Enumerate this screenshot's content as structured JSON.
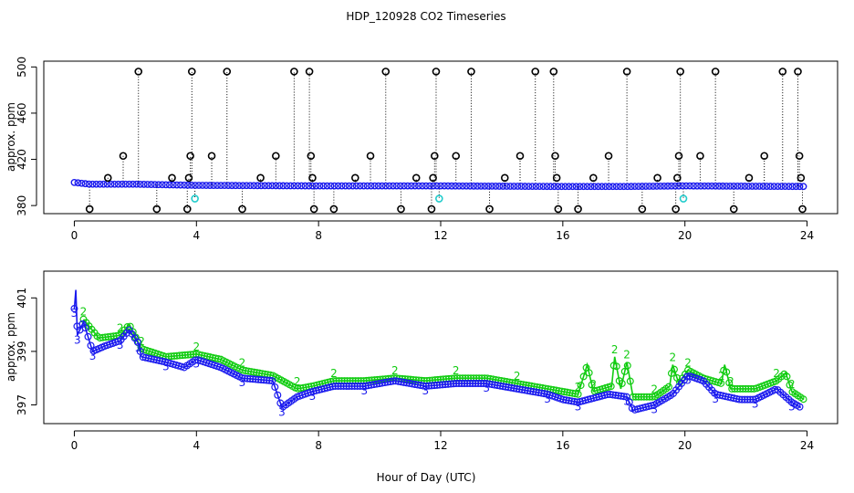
{
  "title": "HDP_120928  CO2 Timeseries",
  "xlabel": "Hour of Day (UTC)",
  "colors": {
    "outlier": "#000000",
    "series_a": "#1a1aee",
    "series_b": "#11cc11",
    "flag_cyan": "#22cccc"
  },
  "chart_data": [
    {
      "type": "scatter",
      "name": "top-panel",
      "ylabel": "approx. ppm",
      "xlim": [
        -1,
        25
      ],
      "ylim": [
        373,
        505
      ],
      "xticks": [
        0,
        4,
        8,
        12,
        16,
        20,
        24
      ],
      "yticks": [
        380,
        420,
        460,
        500
      ],
      "outlier_points": [
        {
          "x": 0.5,
          "y": 377
        },
        {
          "x": 1.1,
          "y": 404
        },
        {
          "x": 1.6,
          "y": 423
        },
        {
          "x": 2.1,
          "y": 496
        },
        {
          "x": 2.7,
          "y": 377
        },
        {
          "x": 3.2,
          "y": 404
        },
        {
          "x": 3.7,
          "y": 377
        },
        {
          "x": 3.75,
          "y": 404
        },
        {
          "x": 3.8,
          "y": 423
        },
        {
          "x": 3.85,
          "y": 496
        },
        {
          "x": 4.5,
          "y": 423
        },
        {
          "x": 5.0,
          "y": 496
        },
        {
          "x": 5.5,
          "y": 377
        },
        {
          "x": 6.1,
          "y": 404
        },
        {
          "x": 6.6,
          "y": 423
        },
        {
          "x": 7.2,
          "y": 496
        },
        {
          "x": 7.7,
          "y": 496
        },
        {
          "x": 7.75,
          "y": 423
        },
        {
          "x": 7.8,
          "y": 404
        },
        {
          "x": 7.85,
          "y": 377
        },
        {
          "x": 8.5,
          "y": 377
        },
        {
          "x": 9.2,
          "y": 404
        },
        {
          "x": 9.7,
          "y": 423
        },
        {
          "x": 10.2,
          "y": 496
        },
        {
          "x": 10.7,
          "y": 377
        },
        {
          "x": 11.2,
          "y": 404
        },
        {
          "x": 11.7,
          "y": 377
        },
        {
          "x": 11.75,
          "y": 404
        },
        {
          "x": 11.8,
          "y": 423
        },
        {
          "x": 11.85,
          "y": 496
        },
        {
          "x": 12.5,
          "y": 423
        },
        {
          "x": 13.0,
          "y": 496
        },
        {
          "x": 13.6,
          "y": 377
        },
        {
          "x": 14.1,
          "y": 404
        },
        {
          "x": 14.6,
          "y": 423
        },
        {
          "x": 15.1,
          "y": 496
        },
        {
          "x": 15.7,
          "y": 496
        },
        {
          "x": 15.75,
          "y": 423
        },
        {
          "x": 15.8,
          "y": 404
        },
        {
          "x": 15.85,
          "y": 377
        },
        {
          "x": 16.5,
          "y": 377
        },
        {
          "x": 17.0,
          "y": 404
        },
        {
          "x": 17.5,
          "y": 423
        },
        {
          "x": 18.1,
          "y": 496
        },
        {
          "x": 18.6,
          "y": 377
        },
        {
          "x": 19.1,
          "y": 404
        },
        {
          "x": 19.7,
          "y": 377
        },
        {
          "x": 19.75,
          "y": 404
        },
        {
          "x": 19.8,
          "y": 423
        },
        {
          "x": 19.85,
          "y": 496
        },
        {
          "x": 20.5,
          "y": 423
        },
        {
          "x": 21.0,
          "y": 496
        },
        {
          "x": 21.6,
          "y": 377
        },
        {
          "x": 22.1,
          "y": 404
        },
        {
          "x": 22.6,
          "y": 423
        },
        {
          "x": 23.2,
          "y": 496
        },
        {
          "x": 23.7,
          "y": 496
        },
        {
          "x": 23.75,
          "y": 423
        },
        {
          "x": 23.8,
          "y": 404
        },
        {
          "x": 23.85,
          "y": 377
        }
      ],
      "flag_points": [
        {
          "x": 3.95,
          "y": 386
        },
        {
          "x": 11.95,
          "y": 386
        },
        {
          "x": 19.95,
          "y": 386
        }
      ],
      "baseline_profile": [
        {
          "x": 0,
          "y": 400
        },
        {
          "x": 0.5,
          "y": 398.5
        },
        {
          "x": 2,
          "y": 398.5
        },
        {
          "x": 4,
          "y": 397.5
        },
        {
          "x": 8,
          "y": 397
        },
        {
          "x": 12,
          "y": 397
        },
        {
          "x": 16,
          "y": 396.5
        },
        {
          "x": 18,
          "y": 396.5
        },
        {
          "x": 20,
          "y": 397
        },
        {
          "x": 24,
          "y": 396.5
        }
      ]
    },
    {
      "type": "line",
      "name": "bottom-panel",
      "ylabel": "approx. ppm",
      "xlim": [
        -1,
        25
      ],
      "ylim": [
        396.3,
        402.0
      ],
      "xticks": [
        0,
        4,
        8,
        12,
        16,
        20,
        24
      ],
      "yticks": [
        397,
        399,
        401
      ],
      "marker_a": "3",
      "marker_b": "2",
      "series": [
        {
          "name": "series-3-blue",
          "marker": "o",
          "points": [
            {
              "x": 0.0,
              "y": 400.6
            },
            {
              "x": 0.05,
              "y": 401.3
            },
            {
              "x": 0.1,
              "y": 399.6
            },
            {
              "x": 0.3,
              "y": 400.1
            },
            {
              "x": 0.6,
              "y": 399.0
            },
            {
              "x": 1.0,
              "y": 399.2
            },
            {
              "x": 1.5,
              "y": 399.4
            },
            {
              "x": 1.8,
              "y": 399.8
            },
            {
              "x": 2.1,
              "y": 399.3
            },
            {
              "x": 2.2,
              "y": 398.8
            },
            {
              "x": 3.0,
              "y": 398.6
            },
            {
              "x": 3.6,
              "y": 398.4
            },
            {
              "x": 4.0,
              "y": 398.7
            },
            {
              "x": 4.8,
              "y": 398.4
            },
            {
              "x": 5.5,
              "y": 398.0
            },
            {
              "x": 6.5,
              "y": 397.9
            },
            {
              "x": 6.8,
              "y": 396.9
            },
            {
              "x": 7.3,
              "y": 397.3
            },
            {
              "x": 7.8,
              "y": 397.5
            },
            {
              "x": 8.5,
              "y": 397.7
            },
            {
              "x": 9.5,
              "y": 397.7
            },
            {
              "x": 10.5,
              "y": 397.9
            },
            {
              "x": 11.5,
              "y": 397.7
            },
            {
              "x": 12.5,
              "y": 397.8
            },
            {
              "x": 13.5,
              "y": 397.8
            },
            {
              "x": 14.5,
              "y": 397.6
            },
            {
              "x": 15.5,
              "y": 397.4
            },
            {
              "x": 16.0,
              "y": 397.2
            },
            {
              "x": 16.5,
              "y": 397.1
            },
            {
              "x": 17.5,
              "y": 397.4
            },
            {
              "x": 18.1,
              "y": 397.3
            },
            {
              "x": 18.3,
              "y": 396.8
            },
            {
              "x": 19.0,
              "y": 397.0
            },
            {
              "x": 19.6,
              "y": 397.4
            },
            {
              "x": 20.1,
              "y": 398.1
            },
            {
              "x": 20.6,
              "y": 397.9
            },
            {
              "x": 21.0,
              "y": 397.4
            },
            {
              "x": 21.8,
              "y": 397.2
            },
            {
              "x": 22.3,
              "y": 397.2
            },
            {
              "x": 23.0,
              "y": 397.6
            },
            {
              "x": 23.5,
              "y": 397.1
            },
            {
              "x": 23.8,
              "y": 396.9
            }
          ]
        },
        {
          "name": "series-2-green",
          "marker": "o",
          "points": [
            {
              "x": 0.3,
              "y": 400.2
            },
            {
              "x": 0.8,
              "y": 399.5
            },
            {
              "x": 1.5,
              "y": 399.6
            },
            {
              "x": 1.8,
              "y": 400.0
            },
            {
              "x": 2.2,
              "y": 399.1
            },
            {
              "x": 3.0,
              "y": 398.8
            },
            {
              "x": 4.0,
              "y": 398.9
            },
            {
              "x": 4.8,
              "y": 398.7
            },
            {
              "x": 5.5,
              "y": 398.3
            },
            {
              "x": 6.5,
              "y": 398.1
            },
            {
              "x": 7.3,
              "y": 397.6
            },
            {
              "x": 7.8,
              "y": 397.7
            },
            {
              "x": 8.5,
              "y": 397.9
            },
            {
              "x": 9.5,
              "y": 397.9
            },
            {
              "x": 10.5,
              "y": 398.0
            },
            {
              "x": 11.5,
              "y": 397.9
            },
            {
              "x": 12.5,
              "y": 398.0
            },
            {
              "x": 13.5,
              "y": 398.0
            },
            {
              "x": 14.5,
              "y": 397.8
            },
            {
              "x": 15.5,
              "y": 397.6
            },
            {
              "x": 16.5,
              "y": 397.4
            },
            {
              "x": 16.8,
              "y": 398.5
            },
            {
              "x": 17.0,
              "y": 397.5
            },
            {
              "x": 17.6,
              "y": 397.7
            },
            {
              "x": 17.7,
              "y": 398.8
            },
            {
              "x": 17.9,
              "y": 397.6
            },
            {
              "x": 18.1,
              "y": 398.6
            },
            {
              "x": 18.3,
              "y": 397.3
            },
            {
              "x": 19.0,
              "y": 397.3
            },
            {
              "x": 19.5,
              "y": 397.7
            },
            {
              "x": 19.6,
              "y": 398.5
            },
            {
              "x": 19.8,
              "y": 397.8
            },
            {
              "x": 20.1,
              "y": 398.3
            },
            {
              "x": 20.6,
              "y": 398.0
            },
            {
              "x": 21.2,
              "y": 397.8
            },
            {
              "x": 21.3,
              "y": 398.5
            },
            {
              "x": 21.5,
              "y": 397.6
            },
            {
              "x": 22.3,
              "y": 397.6
            },
            {
              "x": 23.0,
              "y": 397.9
            },
            {
              "x": 23.3,
              "y": 398.2
            },
            {
              "x": 23.5,
              "y": 397.5
            },
            {
              "x": 23.9,
              "y": 397.2
            }
          ]
        }
      ]
    }
  ]
}
